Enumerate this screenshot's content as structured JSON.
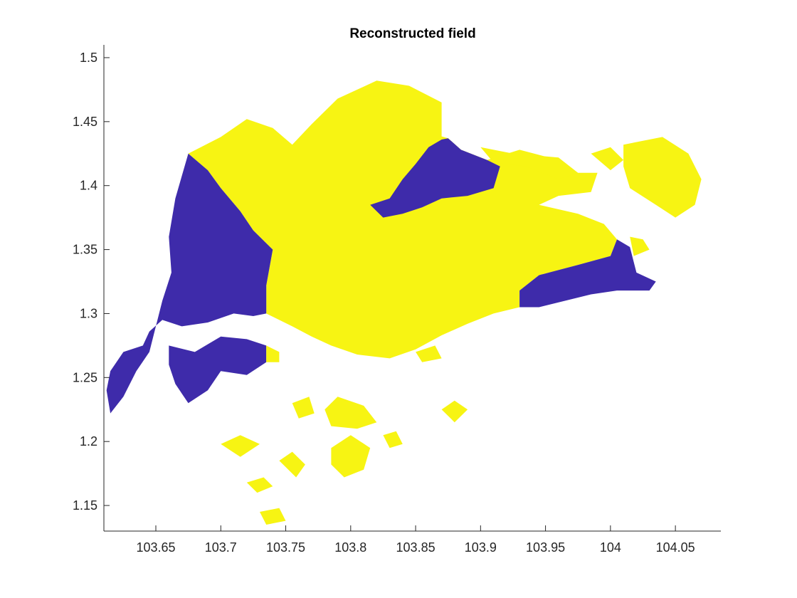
{
  "chart_data": {
    "type": "heatmap",
    "title": "Reconstructed field",
    "xlabel": "",
    "ylabel": "",
    "xlim": [
      103.61,
      104.085
    ],
    "ylim": [
      1.13,
      1.51
    ],
    "xticks": [
      103.65,
      103.7,
      103.75,
      103.8,
      103.85,
      103.9,
      103.95,
      104,
      104.05
    ],
    "xtick_labels": [
      "103.65",
      "103.7",
      "103.75",
      "103.8",
      "103.85",
      "103.9",
      "103.95",
      "104",
      "104.05"
    ],
    "yticks": [
      1.15,
      1.2,
      1.25,
      1.3,
      1.35,
      1.4,
      1.45,
      1.5
    ],
    "ytick_labels": [
      "1.15",
      "1.2",
      "1.25",
      "1.3",
      "1.35",
      "1.4",
      "1.45",
      "1.5"
    ],
    "grid": false,
    "classes": [
      {
        "value": 0,
        "color": "#3E2BAA"
      },
      {
        "value": 1,
        "color": "#F7F413"
      }
    ],
    "regions": [
      {
        "class": 1,
        "lonlat": [
          [
            103.675,
            1.425
          ],
          [
            103.7,
            1.438
          ],
          [
            103.72,
            1.452
          ],
          [
            103.74,
            1.445
          ],
          [
            103.755,
            1.432
          ],
          [
            103.77,
            1.448
          ],
          [
            103.79,
            1.468
          ],
          [
            103.82,
            1.482
          ],
          [
            103.845,
            1.478
          ],
          [
            103.87,
            1.465
          ],
          [
            103.87,
            1.436
          ],
          [
            103.86,
            1.43
          ],
          [
            103.85,
            1.417
          ],
          [
            103.84,
            1.405
          ],
          [
            103.83,
            1.39
          ],
          [
            103.815,
            1.385
          ],
          [
            103.815,
            1.404
          ],
          [
            103.825,
            1.415
          ],
          [
            103.84,
            1.425
          ],
          [
            103.85,
            1.435
          ],
          [
            103.865,
            1.44
          ],
          [
            103.875,
            1.437
          ],
          [
            103.885,
            1.428
          ],
          [
            103.905,
            1.42
          ],
          [
            103.93,
            1.428
          ],
          [
            103.96,
            1.42
          ],
          [
            103.975,
            1.41
          ],
          [
            103.99,
            1.41
          ],
          [
            103.985,
            1.395
          ],
          [
            103.96,
            1.392
          ],
          [
            103.945,
            1.385
          ],
          [
            103.975,
            1.378
          ],
          [
            103.995,
            1.37
          ],
          [
            104.005,
            1.358
          ],
          [
            104.0,
            1.345
          ],
          [
            103.975,
            1.338
          ],
          [
            103.945,
            1.33
          ],
          [
            103.93,
            1.318
          ],
          [
            103.93,
            1.305
          ],
          [
            103.91,
            1.3
          ],
          [
            103.89,
            1.292
          ],
          [
            103.87,
            1.283
          ],
          [
            103.85,
            1.272
          ],
          [
            103.83,
            1.265
          ],
          [
            103.805,
            1.268
          ],
          [
            103.785,
            1.275
          ],
          [
            103.77,
            1.282
          ],
          [
            103.755,
            1.29
          ],
          [
            103.735,
            1.3
          ],
          [
            103.735,
            1.322
          ],
          [
            103.74,
            1.35
          ],
          [
            103.725,
            1.365
          ],
          [
            103.715,
            1.38
          ],
          [
            103.7,
            1.398
          ],
          [
            103.69,
            1.412
          ],
          [
            103.675,
            1.425
          ]
        ]
      },
      {
        "class": 0,
        "lonlat": [
          [
            103.675,
            1.425
          ],
          [
            103.69,
            1.412
          ],
          [
            103.7,
            1.398
          ],
          [
            103.715,
            1.38
          ],
          [
            103.725,
            1.365
          ],
          [
            103.74,
            1.35
          ],
          [
            103.735,
            1.322
          ],
          [
            103.735,
            1.3
          ],
          [
            103.725,
            1.298
          ],
          [
            103.71,
            1.3
          ],
          [
            103.69,
            1.293
          ],
          [
            103.67,
            1.29
          ],
          [
            103.655,
            1.295
          ],
          [
            103.645,
            1.286
          ],
          [
            103.64,
            1.275
          ],
          [
            103.625,
            1.27
          ],
          [
            103.615,
            1.255
          ],
          [
            103.612,
            1.24
          ],
          [
            103.615,
            1.222
          ],
          [
            103.625,
            1.235
          ],
          [
            103.635,
            1.255
          ],
          [
            103.645,
            1.27
          ],
          [
            103.655,
            1.31
          ],
          [
            103.662,
            1.332
          ],
          [
            103.66,
            1.36
          ],
          [
            103.665,
            1.39
          ],
          [
            103.675,
            1.425
          ]
        ]
      },
      {
        "class": 0,
        "lonlat": [
          [
            103.815,
            1.385
          ],
          [
            103.83,
            1.39
          ],
          [
            103.84,
            1.405
          ],
          [
            103.85,
            1.417
          ],
          [
            103.86,
            1.43
          ],
          [
            103.87,
            1.436
          ],
          [
            103.875,
            1.437
          ],
          [
            103.885,
            1.428
          ],
          [
            103.905,
            1.42
          ],
          [
            103.915,
            1.415
          ],
          [
            103.91,
            1.398
          ],
          [
            103.89,
            1.392
          ],
          [
            103.87,
            1.39
          ],
          [
            103.855,
            1.383
          ],
          [
            103.84,
            1.378
          ],
          [
            103.825,
            1.375
          ],
          [
            103.815,
            1.385
          ]
        ]
      },
      {
        "class": 0,
        "lonlat": [
          [
            103.93,
            1.305
          ],
          [
            103.93,
            1.318
          ],
          [
            103.945,
            1.33
          ],
          [
            103.975,
            1.338
          ],
          [
            104.0,
            1.345
          ],
          [
            104.005,
            1.358
          ],
          [
            104.015,
            1.352
          ],
          [
            104.02,
            1.332
          ],
          [
            104.035,
            1.325
          ],
          [
            104.03,
            1.318
          ],
          [
            104.005,
            1.318
          ],
          [
            103.985,
            1.315
          ],
          [
            103.965,
            1.31
          ],
          [
            103.945,
            1.305
          ],
          [
            103.93,
            1.305
          ]
        ]
      },
      {
        "class": 0,
        "lonlat": [
          [
            103.66,
            1.275
          ],
          [
            103.68,
            1.27
          ],
          [
            103.7,
            1.282
          ],
          [
            103.72,
            1.28
          ],
          [
            103.735,
            1.275
          ],
          [
            103.735,
            1.262
          ],
          [
            103.72,
            1.252
          ],
          [
            103.7,
            1.255
          ],
          [
            103.69,
            1.24
          ],
          [
            103.675,
            1.23
          ],
          [
            103.665,
            1.245
          ],
          [
            103.66,
            1.26
          ],
          [
            103.66,
            1.275
          ]
        ]
      },
      {
        "class": 1,
        "lonlat": [
          [
            103.735,
            1.275
          ],
          [
            103.745,
            1.27
          ],
          [
            103.745,
            1.262
          ],
          [
            103.735,
            1.262
          ],
          [
            103.735,
            1.275
          ]
        ]
      },
      {
        "class": 1,
        "lonlat": [
          [
            104.01,
            1.432
          ],
          [
            104.04,
            1.438
          ],
          [
            104.06,
            1.425
          ],
          [
            104.07,
            1.405
          ],
          [
            104.065,
            1.385
          ],
          [
            104.05,
            1.375
          ],
          [
            104.035,
            1.385
          ],
          [
            104.015,
            1.398
          ],
          [
            104.01,
            1.415
          ],
          [
            104.01,
            1.432
          ]
        ]
      },
      {
        "class": 1,
        "lonlat": [
          [
            103.9,
            1.43
          ],
          [
            103.925,
            1.425
          ],
          [
            103.96,
            1.422
          ],
          [
            103.975,
            1.41
          ],
          [
            103.96,
            1.405
          ],
          [
            103.935,
            1.415
          ],
          [
            103.91,
            1.418
          ],
          [
            103.9,
            1.43
          ]
        ]
      },
      {
        "class": 1,
        "lonlat": [
          [
            103.985,
            1.425
          ],
          [
            104.0,
            1.43
          ],
          [
            104.01,
            1.42
          ],
          [
            104.0,
            1.412
          ],
          [
            103.985,
            1.425
          ]
        ]
      },
      {
        "class": 1,
        "lonlat": [
          [
            104.015,
            1.36
          ],
          [
            104.025,
            1.358
          ],
          [
            104.03,
            1.35
          ],
          [
            104.018,
            1.345
          ],
          [
            104.015,
            1.36
          ]
        ]
      },
      {
        "class": 1,
        "lonlat": [
          [
            103.745,
            1.185
          ],
          [
            103.755,
            1.192
          ],
          [
            103.765,
            1.182
          ],
          [
            103.758,
            1.172
          ],
          [
            103.745,
            1.185
          ]
        ]
      },
      {
        "class": 1,
        "lonlat": [
          [
            103.755,
            1.23
          ],
          [
            103.768,
            1.235
          ],
          [
            103.772,
            1.222
          ],
          [
            103.76,
            1.218
          ],
          [
            103.755,
            1.23
          ]
        ]
      },
      {
        "class": 1,
        "lonlat": [
          [
            103.78,
            1.225
          ],
          [
            103.79,
            1.235
          ],
          [
            103.81,
            1.228
          ],
          [
            103.82,
            1.215
          ],
          [
            103.805,
            1.21
          ],
          [
            103.785,
            1.212
          ],
          [
            103.78,
            1.225
          ]
        ]
      },
      {
        "class": 1,
        "lonlat": [
          [
            103.785,
            1.195
          ],
          [
            103.8,
            1.205
          ],
          [
            103.815,
            1.195
          ],
          [
            103.81,
            1.178
          ],
          [
            103.795,
            1.172
          ],
          [
            103.785,
            1.182
          ],
          [
            103.785,
            1.195
          ]
        ]
      },
      {
        "class": 1,
        "lonlat": [
          [
            103.825,
            1.205
          ],
          [
            103.835,
            1.208
          ],
          [
            103.84,
            1.198
          ],
          [
            103.83,
            1.195
          ],
          [
            103.825,
            1.205
          ]
        ]
      },
      {
        "class": 1,
        "lonlat": [
          [
            103.7,
            1.198
          ],
          [
            103.715,
            1.205
          ],
          [
            103.73,
            1.198
          ],
          [
            103.715,
            1.188
          ],
          [
            103.7,
            1.198
          ]
        ]
      },
      {
        "class": 1,
        "lonlat": [
          [
            103.72,
            1.168
          ],
          [
            103.733,
            1.172
          ],
          [
            103.74,
            1.165
          ],
          [
            103.728,
            1.16
          ],
          [
            103.72,
            1.168
          ]
        ]
      },
      {
        "class": 1,
        "lonlat": [
          [
            103.73,
            1.145
          ],
          [
            103.745,
            1.148
          ],
          [
            103.75,
            1.138
          ],
          [
            103.735,
            1.135
          ],
          [
            103.73,
            1.145
          ]
        ]
      },
      {
        "class": 1,
        "lonlat": [
          [
            103.85,
            1.27
          ],
          [
            103.865,
            1.275
          ],
          [
            103.87,
            1.265
          ],
          [
            103.855,
            1.262
          ],
          [
            103.85,
            1.27
          ]
        ]
      },
      {
        "class": 1,
        "lonlat": [
          [
            103.87,
            1.225
          ],
          [
            103.88,
            1.232
          ],
          [
            103.89,
            1.225
          ],
          [
            103.88,
            1.215
          ],
          [
            103.87,
            1.225
          ]
        ]
      }
    ]
  }
}
